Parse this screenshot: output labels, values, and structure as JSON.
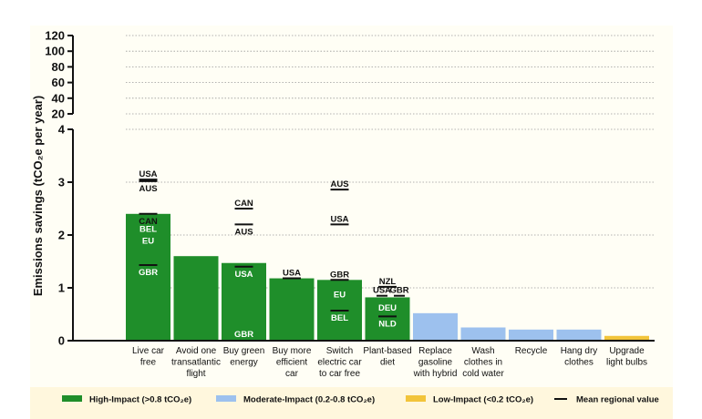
{
  "chart_data": {
    "type": "bar",
    "ylabel": "Emissions savings (tCO₂e per year)",
    "y_lower_ticks": [
      "0",
      "1",
      "2",
      "3",
      "4"
    ],
    "y_upper_ticks": [
      "20",
      "40",
      "60",
      "80",
      "100",
      "120"
    ],
    "ylim_lower": [
      0,
      4
    ],
    "ylim_upper": [
      20,
      120
    ],
    "categories": [
      {
        "lines": [
          "Live car",
          "free"
        ],
        "value": 2.4,
        "impact": "high"
      },
      {
        "lines": [
          "Avoid one",
          "transatlantic",
          "flight"
        ],
        "value": 1.6,
        "impact": "high"
      },
      {
        "lines": [
          "Buy green",
          "energy"
        ],
        "value": 1.47,
        "impact": "high"
      },
      {
        "lines": [
          "Buy more",
          "efficient",
          "car"
        ],
        "value": 1.18,
        "impact": "high"
      },
      {
        "lines": [
          "Switch",
          "electric car",
          "to car free"
        ],
        "value": 1.15,
        "impact": "high"
      },
      {
        "lines": [
          "Plant-based",
          "diet"
        ],
        "value": 0.82,
        "impact": "high"
      },
      {
        "lines": [
          "Replace",
          "gasoline",
          "with hybrid"
        ],
        "value": 0.52,
        "impact": "moderate"
      },
      {
        "lines": [
          "Wash",
          "clothes in",
          "cold water"
        ],
        "value": 0.25,
        "impact": "moderate"
      },
      {
        "lines": [
          "Recycle"
        ],
        "value": 0.21,
        "impact": "moderate"
      },
      {
        "lines": [
          "Hang dry",
          "clothes"
        ],
        "value": 0.21,
        "impact": "moderate"
      },
      {
        "lines": [
          "Upgrade",
          "light bulbs"
        ],
        "value": 0.09,
        "impact": "low"
      }
    ],
    "regional_labels": [
      {
        "cat": 0,
        "label": "USA",
        "mean": 3.05,
        "label_pos": "above"
      },
      {
        "cat": 0,
        "label": "AUS",
        "mean": 3.02,
        "label_pos": "below"
      },
      {
        "cat": 0,
        "label": "CAN",
        "mean": 2.4,
        "label_pos": "below"
      },
      {
        "cat": 0,
        "label": "BEL",
        "mean": null,
        "label_y": 2.12
      },
      {
        "cat": 0,
        "label": "EU",
        "mean": null,
        "label_y": 1.9
      },
      {
        "cat": 0,
        "label": "GBR",
        "mean": 1.43,
        "label_pos": "below"
      },
      {
        "cat": 2,
        "label": "CAN",
        "mean": 2.5,
        "label_pos": "above"
      },
      {
        "cat": 2,
        "label": "AUS",
        "mean": 2.2,
        "label_pos": "below"
      },
      {
        "cat": 2,
        "label": "USA",
        "mean": 1.4,
        "label_pos": "below"
      },
      {
        "cat": 2,
        "label": "GBR",
        "mean": null,
        "label_y": 0.13
      },
      {
        "cat": 3,
        "label": "USA",
        "mean": 1.18,
        "label_pos": "above"
      },
      {
        "cat": 4,
        "label": "AUS",
        "mean": 2.86,
        "label_pos": "above"
      },
      {
        "cat": 4,
        "label": "USA",
        "mean": 2.2,
        "label_pos": "above"
      },
      {
        "cat": 4,
        "label": "GBR",
        "mean": 1.15,
        "label_pos": "above"
      },
      {
        "cat": 4,
        "label": "EU",
        "mean": null,
        "label_y": 0.88
      },
      {
        "cat": 4,
        "label": "BEL",
        "mean": 0.57,
        "label_pos": "below"
      },
      {
        "cat": 5,
        "label": "NZL",
        "mean": 1.02,
        "label_pos": "above"
      },
      {
        "cat": 5,
        "label": "USA",
        "mean": 0.85,
        "label_pos": "above",
        "offset": -6
      },
      {
        "cat": 5,
        "label": "GBR",
        "mean": 0.85,
        "label_pos": "above",
        "offset": 13
      },
      {
        "cat": 5,
        "label": "DEU",
        "mean": null,
        "label_y": 0.63
      },
      {
        "cat": 5,
        "label": "NLD",
        "mean": 0.46,
        "label_pos": "below"
      }
    ],
    "legend": [
      {
        "label": "High-Impact (>0.8 tCO₂e)",
        "kind": "swatch",
        "color": "#1f8e2a"
      },
      {
        "label": "Moderate-Impact (0.2-0.8 tCO₂e)",
        "kind": "swatch",
        "color": "#9dc1ee"
      },
      {
        "label": "Low-Impact (<0.2 tCO₂e)",
        "kind": "swatch",
        "color": "#f2c43a"
      },
      {
        "label": "Mean regional value",
        "kind": "line",
        "color": "#111111"
      }
    ],
    "colors": {
      "high": "#1f8e2a",
      "moderate": "#9dc1ee",
      "low": "#f2c43a"
    }
  }
}
